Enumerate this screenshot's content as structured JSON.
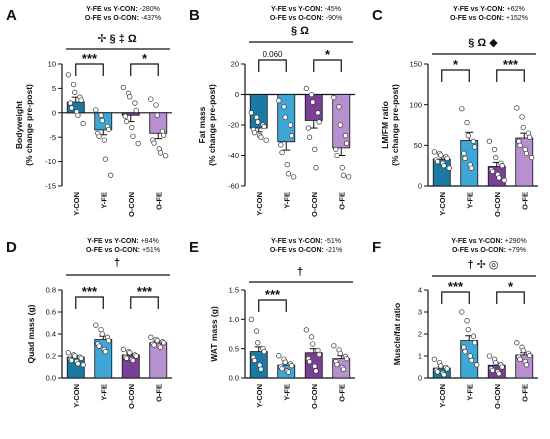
{
  "colors": {
    "Y-CON": "#1b7aa3",
    "Y-FE": "#3fa6d8",
    "O-CON": "#7a3f96",
    "O-FE": "#b690cf"
  },
  "chart_data": [
    {
      "panel": "A",
      "type": "bar",
      "ylabel": [
        "Bodyweight",
        "(% change pre-post)"
      ],
      "ylim": [
        -15,
        10
      ],
      "yticks": [
        -15,
        -10,
        -5,
        0,
        5,
        10
      ],
      "comparisons": [
        [
          "Y-FE vs Y-CON:",
          "-280%"
        ],
        [
          "O-FE vs O-CON:",
          "-437%"
        ]
      ],
      "symbols": "✢ § ‡ Ω",
      "categories": [
        "Y-CON",
        "Y-FE",
        "O-CON",
        "O-FE"
      ],
      "values": [
        2.2,
        -3.5,
        -0.5,
        -4.2
      ],
      "errors": [
        1.0,
        1.0,
        1.3,
        1.1
      ],
      "points": [
        [
          7.8,
          5.8,
          4.2,
          3.2,
          2.6,
          2.0,
          1.0,
          0.2,
          -0.5,
          -2.2
        ],
        [
          0.6,
          -0.5,
          -1.6,
          -2.8,
          -3.4,
          -4.2,
          -4.8,
          -5.6,
          -9.5,
          -12.8
        ],
        [
          5.2,
          4.0,
          3.3,
          2.0,
          0.5,
          -0.7,
          -1.8,
          -3.0,
          -4.8,
          -6.3
        ],
        [
          2.8,
          1.6,
          -0.5,
          -3.8,
          -4.6,
          -5.6,
          -6.2,
          -7.4,
          -8.2,
          -8.8
        ]
      ],
      "sig_brackets": [
        {
          "from": 0,
          "to": 1,
          "label": "***"
        },
        {
          "from": 2,
          "to": 3,
          "label": "*"
        }
      ]
    },
    {
      "panel": "B",
      "type": "bar",
      "ylabel": [
        "Fat mass",
        "(% change pre-post)"
      ],
      "ylim": [
        -60,
        20
      ],
      "yticks": [
        -60,
        -40,
        -20,
        0,
        20
      ],
      "comparisons": [
        [
          "Y-FE vs Y-CON:",
          "-45%"
        ],
        [
          "O-FE vs O-CON:",
          "-90%"
        ]
      ],
      "symbols": "§ Ω",
      "categories": [
        "Y-CON",
        "Y-FE",
        "O-CON",
        "O-FE"
      ],
      "values": [
        -22,
        -31,
        -17,
        -35
      ],
      "errors": [
        2.5,
        5.5,
        5.0,
        5.0
      ],
      "points": [
        [
          -12,
          -15,
          -18,
          -20,
          -21,
          -23,
          -25,
          -27,
          -28,
          -30
        ],
        [
          -4,
          -8,
          -15,
          -20,
          -27,
          -33,
          -38,
          -46,
          -52,
          -54
        ],
        [
          4,
          0,
          -5,
          -12,
          -18,
          -22,
          -28,
          -36,
          -48
        ],
        [
          -2,
          -8,
          -20,
          -27,
          -32,
          -36,
          -40,
          -48,
          -53,
          -54
        ]
      ],
      "sig_brackets": [
        {
          "from": 0,
          "to": 1,
          "label": "0.060"
        },
        {
          "from": 2,
          "to": 3,
          "label": "*"
        }
      ]
    },
    {
      "panel": "C",
      "type": "bar",
      "ylabel": [
        "LM/FM ratio",
        "(% change pre-post)"
      ],
      "ylim": [
        0,
        150
      ],
      "yticks": [
        0,
        50,
        100,
        150
      ],
      "comparisons": [
        [
          "Y-FE vs Y-CON:",
          "+62%"
        ],
        [
          "O-FE vs O-CON:",
          "+152%"
        ]
      ],
      "symbols": "§ Ω ◆",
      "categories": [
        "Y-CON",
        "Y-FE",
        "O-CON",
        "O-FE"
      ],
      "values": [
        33,
        56,
        24,
        59
      ],
      "errors": [
        4,
        10,
        5,
        6
      ],
      "points": [
        [
          42,
          40,
          38,
          36,
          34,
          32,
          30,
          28,
          25,
          22
        ],
        [
          95,
          78,
          62,
          55,
          48,
          40,
          34,
          26,
          22
        ],
        [
          55,
          45,
          35,
          28,
          25,
          20,
          18,
          14,
          10,
          7
        ],
        [
          96,
          85,
          72,
          65,
          60,
          55,
          50,
          45,
          40,
          35
        ]
      ],
      "sig_brackets": [
        {
          "from": 0,
          "to": 1,
          "label": "*"
        },
        {
          "from": 2,
          "to": 3,
          "label": "***"
        }
      ]
    },
    {
      "panel": "D",
      "type": "bar",
      "ylabel": [
        "Quad mass (g)"
      ],
      "ylim": [
        0,
        0.8
      ],
      "yticks": [
        "0.0",
        "0.2",
        "0.4",
        "0.6",
        "0.8"
      ],
      "ytick_values": [
        0,
        0.2,
        0.4,
        0.6,
        0.8
      ],
      "comparisons": [
        [
          "Y-FE vs Y-CON:",
          "+84%"
        ],
        [
          "O-FE vs O-CON:",
          "+51%"
        ]
      ],
      "symbols": "†",
      "categories": [
        "Y-CON",
        "Y-FE",
        "O-CON",
        "O-FE"
      ],
      "values": [
        0.19,
        0.35,
        0.21,
        0.32
      ],
      "errors": [
        0.015,
        0.03,
        0.012,
        0.012
      ],
      "points": [
        [
          0.23,
          0.21,
          0.2,
          0.19,
          0.18,
          0.17,
          0.16,
          0.15,
          0.13,
          0.12
        ],
        [
          0.48,
          0.44,
          0.4,
          0.37,
          0.34,
          0.31,
          0.29,
          0.26,
          0.24
        ],
        [
          0.26,
          0.24,
          0.23,
          0.21,
          0.2,
          0.19,
          0.18,
          0.17,
          0.16
        ],
        [
          0.37,
          0.35,
          0.34,
          0.33,
          0.32,
          0.31,
          0.3,
          0.29,
          0.28
        ]
      ],
      "sig_brackets": [
        {
          "from": 0,
          "to": 1,
          "label": "***"
        },
        {
          "from": 2,
          "to": 3,
          "label": "***"
        }
      ]
    },
    {
      "panel": "E",
      "type": "bar",
      "ylabel": [
        "WAT mass (g)"
      ],
      "ylim": [
        0,
        1.5
      ],
      "yticks": [
        "0.0",
        "0.5",
        "1.0",
        "1.5"
      ],
      "ytick_values": [
        0,
        0.5,
        1.0,
        1.5
      ],
      "comparisons": [
        [
          "Y-FE vs Y-CON:",
          "-51%"
        ],
        [
          "O-FE vs O-CON:",
          "-21%"
        ]
      ],
      "symbols": "†",
      "categories": [
        "Y-CON",
        "Y-FE",
        "O-CON",
        "O-FE"
      ],
      "values": [
        0.45,
        0.22,
        0.43,
        0.33
      ],
      "errors": [
        0.08,
        0.03,
        0.07,
        0.05
      ],
      "points": [
        [
          1.0,
          0.8,
          0.6,
          0.5,
          0.45,
          0.35,
          0.3,
          0.22,
          0.15
        ],
        [
          0.38,
          0.32,
          0.27,
          0.24,
          0.21,
          0.19,
          0.16,
          0.12,
          0.1
        ],
        [
          0.82,
          0.7,
          0.58,
          0.47,
          0.4,
          0.33,
          0.28,
          0.2,
          0.12
        ],
        [
          0.55,
          0.48,
          0.42,
          0.37,
          0.33,
          0.28,
          0.23,
          0.18,
          0.15
        ]
      ],
      "sig_brackets": [
        {
          "from": 0,
          "to": 1,
          "label": "***"
        }
      ]
    },
    {
      "panel": "F",
      "type": "bar",
      "ylabel": [
        "Muscle/fat ratio"
      ],
      "ylim": [
        0,
        4
      ],
      "yticks": [
        0,
        1,
        2,
        3,
        4
      ],
      "comparisons": [
        [
          "Y-FE vs Y-CON:",
          "+290%"
        ],
        [
          "O-FE vs O-CON:",
          "+79%"
        ]
      ],
      "symbols": "† ✢ ◎",
      "categories": [
        "Y-CON",
        "Y-FE",
        "O-CON",
        "O-FE"
      ],
      "values": [
        0.45,
        1.7,
        0.58,
        1.05
      ],
      "errors": [
        0.08,
        0.22,
        0.1,
        0.1
      ],
      "points": [
        [
          0.85,
          0.7,
          0.55,
          0.48,
          0.42,
          0.35,
          0.28,
          0.22,
          0.15
        ],
        [
          3.0,
          2.6,
          2.2,
          1.9,
          1.6,
          1.4,
          1.2,
          1.0,
          0.8,
          0.6
        ],
        [
          1.0,
          0.85,
          0.7,
          0.6,
          0.5,
          0.42,
          0.35,
          0.28,
          0.2
        ],
        [
          1.6,
          1.4,
          1.25,
          1.12,
          1.02,
          0.95,
          0.85,
          0.75,
          0.6
        ]
      ],
      "sig_brackets": [
        {
          "from": 0,
          "to": 1,
          "label": "***"
        },
        {
          "from": 2,
          "to": 3,
          "label": "*"
        }
      ]
    }
  ]
}
